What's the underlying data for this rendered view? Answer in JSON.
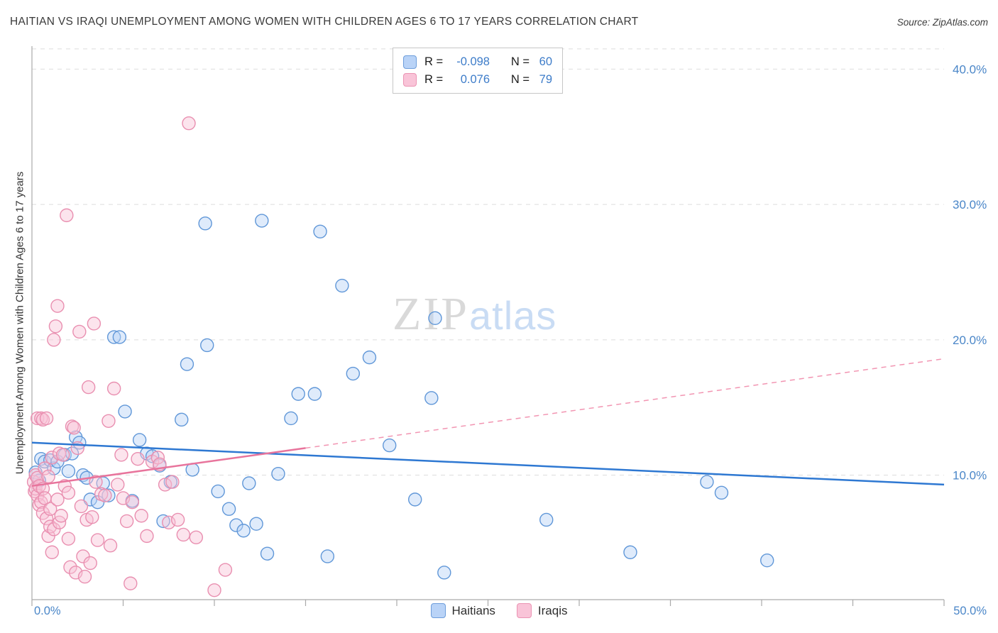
{
  "header": {
    "title": "HAITIAN VS IRAQI UNEMPLOYMENT AMONG WOMEN WITH CHILDREN AGES 6 TO 17 YEARS CORRELATION CHART",
    "source": "Source: ZipAtlas.com"
  },
  "watermark": {
    "part1": "ZIP",
    "part2": "atlas"
  },
  "axes": {
    "y_label": "Unemployment Among Women with Children Ages 6 to 17 years",
    "x_min_label": "0.0%",
    "x_max_label": "50.0%"
  },
  "stats_legend": {
    "rows": [
      {
        "series": "Haitians",
        "r_label": "R =",
        "r_value": "-0.098",
        "n_label": "N =",
        "n_value": "60"
      },
      {
        "series": "Iraqis",
        "r_label": "R =",
        "r_value": "0.076",
        "n_label": "N =",
        "n_value": "79"
      }
    ]
  },
  "bottom_legend": {
    "items": [
      {
        "label": "Haitians",
        "series": "haitians"
      },
      {
        "label": "Iraqis",
        "series": "iraqis"
      }
    ]
  },
  "colors": {
    "haitians_fill": "#b9d3f7",
    "haitians_stroke": "#6097d8",
    "iraqis_fill": "#f9c4d8",
    "iraqis_stroke": "#e98fb0",
    "haitians_trend": "#2e78d2",
    "iraqis_trend": "#e8749c",
    "iraqis_trend_dashed": "#f295b2",
    "tick_label": "#4a86c8",
    "grid": "#dddddd",
    "axis": "#aaaaaa"
  },
  "chart_data": {
    "type": "scatter",
    "title": "HAITIAN VS IRAQI UNEMPLOYMENT AMONG WOMEN WITH CHILDREN AGES 6 TO 17 YEARS CORRELATION CHART",
    "xlabel": "",
    "ylabel": "Unemployment Among Women with Children Ages 6 to 17 years",
    "xlim": [
      0,
      50
    ],
    "ylim": [
      0.8,
      41.7
    ],
    "x_tick_step_percent": 5,
    "y_gridlines_percent": [
      10,
      20,
      30,
      40,
      41.5
    ],
    "y_ticks": [
      {
        "v": 40,
        "label": "40.0%"
      },
      {
        "v": 30,
        "label": "30.0%"
      },
      {
        "v": 20,
        "label": "20.0%"
      },
      {
        "v": 10,
        "label": "10.0%"
      }
    ],
    "series": [
      {
        "name": "Haitians",
        "fill": "#b9d3f7",
        "stroke": "#6097d8",
        "points": [
          [
            0.2,
            10.2
          ],
          [
            0.4,
            9.6
          ],
          [
            0.5,
            11.2
          ],
          [
            0.7,
            11.0
          ],
          [
            1.0,
            11.1
          ],
          [
            1.2,
            10.5
          ],
          [
            1.4,
            11.0
          ],
          [
            1.8,
            11.5
          ],
          [
            2.0,
            10.3
          ],
          [
            2.2,
            11.6
          ],
          [
            2.4,
            12.8
          ],
          [
            2.6,
            12.4
          ],
          [
            2.8,
            10.0
          ],
          [
            3.0,
            9.8
          ],
          [
            3.2,
            8.2
          ],
          [
            3.6,
            8.0
          ],
          [
            3.9,
            9.4
          ],
          [
            4.2,
            8.5
          ],
          [
            4.5,
            20.2
          ],
          [
            4.8,
            20.2
          ],
          [
            5.1,
            14.7
          ],
          [
            5.5,
            8.1
          ],
          [
            5.9,
            12.6
          ],
          [
            6.3,
            11.6
          ],
          [
            6.6,
            11.4
          ],
          [
            7.0,
            10.7
          ],
          [
            7.2,
            6.6
          ],
          [
            7.6,
            9.5
          ],
          [
            8.2,
            14.1
          ],
          [
            8.5,
            18.2
          ],
          [
            8.8,
            10.4
          ],
          [
            9.5,
            28.6
          ],
          [
            9.6,
            19.6
          ],
          [
            10.2,
            8.8
          ],
          [
            10.8,
            7.5
          ],
          [
            11.2,
            6.3
          ],
          [
            11.6,
            5.9
          ],
          [
            11.9,
            9.4
          ],
          [
            12.3,
            6.4
          ],
          [
            12.6,
            28.8
          ],
          [
            12.9,
            4.2
          ],
          [
            13.5,
            10.1
          ],
          [
            14.2,
            14.2
          ],
          [
            14.6,
            16.0
          ],
          [
            15.5,
            16.0
          ],
          [
            15.8,
            28.0
          ],
          [
            16.2,
            4.0
          ],
          [
            17.0,
            24.0
          ],
          [
            17.6,
            17.5
          ],
          [
            18.5,
            18.7
          ],
          [
            19.6,
            12.2
          ],
          [
            21.0,
            8.2
          ],
          [
            21.9,
            15.7
          ],
          [
            22.1,
            21.6
          ],
          [
            22.6,
            2.8
          ],
          [
            28.2,
            6.7
          ],
          [
            32.8,
            4.3
          ],
          [
            37.0,
            9.5
          ],
          [
            37.8,
            8.7
          ],
          [
            40.3,
            3.7
          ]
        ]
      },
      {
        "name": "Iraqis",
        "fill": "#f9c4d8",
        "stroke": "#e98fb0",
        "points": [
          [
            0.1,
            9.5
          ],
          [
            0.15,
            8.8
          ],
          [
            0.2,
            9.0
          ],
          [
            0.2,
            10.0
          ],
          [
            0.3,
            8.5
          ],
          [
            0.3,
            9.8
          ],
          [
            0.3,
            14.2
          ],
          [
            0.4,
            7.8
          ],
          [
            0.4,
            9.2
          ],
          [
            0.5,
            8.0
          ],
          [
            0.5,
            14.2
          ],
          [
            0.6,
            9.0
          ],
          [
            0.6,
            7.2
          ],
          [
            0.6,
            14.1
          ],
          [
            0.7,
            8.3
          ],
          [
            0.7,
            10.5
          ],
          [
            0.8,
            6.8
          ],
          [
            0.8,
            14.2
          ],
          [
            0.9,
            5.5
          ],
          [
            0.9,
            9.9
          ],
          [
            1.0,
            6.2
          ],
          [
            1.0,
            7.5
          ],
          [
            1.1,
            11.3
          ],
          [
            1.1,
            4.3
          ],
          [
            1.2,
            6.0
          ],
          [
            1.2,
            20.0
          ],
          [
            1.3,
            21.0
          ],
          [
            1.4,
            22.5
          ],
          [
            1.4,
            8.2
          ],
          [
            1.5,
            11.6
          ],
          [
            1.5,
            6.5
          ],
          [
            1.6,
            7.0
          ],
          [
            1.7,
            11.5
          ],
          [
            1.8,
            9.2
          ],
          [
            1.9,
            29.2
          ],
          [
            2.0,
            8.7
          ],
          [
            2.0,
            5.3
          ],
          [
            2.1,
            3.2
          ],
          [
            2.2,
            13.6
          ],
          [
            2.3,
            13.5
          ],
          [
            2.4,
            2.8
          ],
          [
            2.5,
            12.0
          ],
          [
            2.6,
            20.6
          ],
          [
            2.7,
            7.7
          ],
          [
            2.8,
            4.0
          ],
          [
            2.9,
            2.5
          ],
          [
            3.0,
            6.7
          ],
          [
            3.1,
            16.5
          ],
          [
            3.2,
            3.5
          ],
          [
            3.3,
            6.9
          ],
          [
            3.4,
            21.2
          ],
          [
            3.5,
            9.5
          ],
          [
            3.6,
            5.2
          ],
          [
            3.8,
            8.6
          ],
          [
            4.0,
            8.5
          ],
          [
            4.2,
            14.0
          ],
          [
            4.3,
            4.8
          ],
          [
            4.5,
            16.4
          ],
          [
            4.7,
            9.3
          ],
          [
            4.9,
            11.5
          ],
          [
            5.0,
            8.3
          ],
          [
            5.2,
            6.6
          ],
          [
            5.4,
            2.0
          ],
          [
            5.5,
            8.0
          ],
          [
            5.8,
            11.2
          ],
          [
            6.0,
            7.0
          ],
          [
            6.3,
            5.5
          ],
          [
            6.6,
            11.0
          ],
          [
            6.9,
            11.3
          ],
          [
            7.0,
            10.8
          ],
          [
            7.3,
            9.3
          ],
          [
            7.5,
            6.5
          ],
          [
            7.7,
            9.5
          ],
          [
            8.0,
            6.7
          ],
          [
            8.3,
            5.6
          ],
          [
            8.6,
            36.0
          ],
          [
            9.0,
            5.4
          ],
          [
            10.0,
            1.5
          ],
          [
            10.6,
            3.0
          ]
        ]
      }
    ],
    "trend_lines": [
      {
        "series": "Haitians",
        "style": "solid",
        "color": "#2e78d2",
        "x1": 0,
        "y1": 12.4,
        "x2": 50,
        "y2": 9.3
      },
      {
        "series": "Iraqis",
        "style": "solid",
        "color": "#e8749c",
        "x1": 0,
        "y1": 9.2,
        "x2": 15,
        "y2": 12.0
      },
      {
        "series": "Iraqis",
        "style": "dashed",
        "color": "#f295b2",
        "x1": 15,
        "y1": 12.0,
        "x2": 50,
        "y2": 18.6
      }
    ],
    "legend_position": "bottom-center",
    "grid": true
  }
}
